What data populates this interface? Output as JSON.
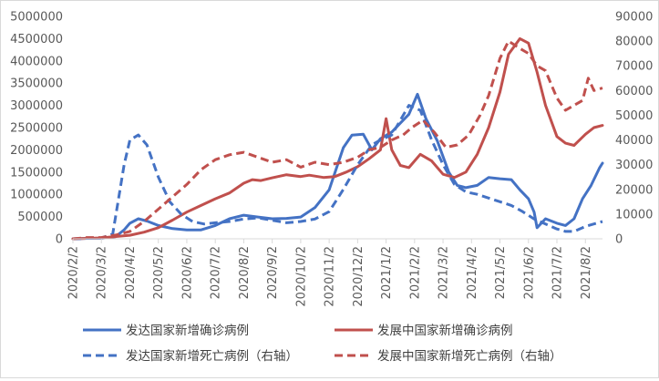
{
  "chart_data": {
    "type": "line",
    "title": "",
    "x_ticks": [
      "2020/2/2",
      "2020/3/2",
      "2020/4/2",
      "2020/5/2",
      "2020/6/2",
      "2020/7/2",
      "2020/8/2",
      "2020/9/2",
      "2020/10/2",
      "2020/11/2",
      "2020/12/2",
      "2021/1/2",
      "2021/2/2",
      "2021/3/2",
      "2021/4/2",
      "2021/5/2",
      "2021/6/2",
      "2021/7/2",
      "2021/8/2"
    ],
    "y_left": {
      "min": 0,
      "max": 5000000,
      "step": 500000,
      "ticks": [
        "0",
        "500000",
        "1000000",
        "1500000",
        "2000000",
        "2500000",
        "3000000",
        "3500000",
        "4000000",
        "4500000",
        "5000000"
      ]
    },
    "y_right": {
      "min": 0,
      "max": 90000,
      "step": 10000,
      "ticks": [
        "0",
        "10000",
        "20000",
        "30000",
        "40000",
        "50000",
        "60000",
        "70000",
        "80000",
        "90000"
      ]
    },
    "x_range_months": [
      0,
      18.6
    ],
    "grid": false,
    "legend_position": "bottom",
    "series": [
      {
        "name": "发达国家新增确诊病例",
        "axis": "left",
        "color": "#4472C4",
        "dash": false,
        "points": [
          [
            0,
            0
          ],
          [
            0.5,
            10000
          ],
          [
            1,
            10000
          ],
          [
            1.5,
            50000
          ],
          [
            1.8,
            200000
          ],
          [
            2,
            350000
          ],
          [
            2.3,
            450000
          ],
          [
            2.6,
            400000
          ],
          [
            3,
            300000
          ],
          [
            3.5,
            230000
          ],
          [
            4,
            200000
          ],
          [
            4.5,
            200000
          ],
          [
            5,
            300000
          ],
          [
            5.5,
            450000
          ],
          [
            6,
            530000
          ],
          [
            6.5,
            490000
          ],
          [
            7,
            450000
          ],
          [
            7.5,
            460000
          ],
          [
            8,
            490000
          ],
          [
            8.5,
            700000
          ],
          [
            9,
            1100000
          ],
          [
            9.5,
            2050000
          ],
          [
            9.8,
            2330000
          ],
          [
            10.2,
            2350000
          ],
          [
            10.5,
            2000000
          ],
          [
            10.8,
            2250000
          ],
          [
            11.2,
            2400000
          ],
          [
            11.5,
            2600000
          ],
          [
            11.8,
            2800000
          ],
          [
            12.1,
            3250000
          ],
          [
            12.4,
            2700000
          ],
          [
            12.8,
            2200000
          ],
          [
            13.2,
            1500000
          ],
          [
            13.5,
            1200000
          ],
          [
            13.8,
            1150000
          ],
          [
            14.2,
            1200000
          ],
          [
            14.6,
            1380000
          ],
          [
            15,
            1350000
          ],
          [
            15.4,
            1330000
          ],
          [
            15.7,
            1100000
          ],
          [
            16,
            900000
          ],
          [
            16.2,
            600000
          ],
          [
            16.3,
            250000
          ],
          [
            16.6,
            450000
          ],
          [
            17,
            350000
          ],
          [
            17.3,
            300000
          ],
          [
            17.6,
            450000
          ],
          [
            17.9,
            900000
          ],
          [
            18.2,
            1200000
          ],
          [
            18.5,
            1600000
          ],
          [
            18.6,
            1700000
          ]
        ]
      },
      {
        "name": "发展中国家新增确诊病例",
        "axis": "left",
        "color": "#C0504D",
        "dash": false,
        "points": [
          [
            0,
            0
          ],
          [
            1,
            20000
          ],
          [
            2,
            80000
          ],
          [
            2.5,
            150000
          ],
          [
            3,
            250000
          ],
          [
            3.5,
            420000
          ],
          [
            4,
            600000
          ],
          [
            4.5,
            750000
          ],
          [
            5,
            900000
          ],
          [
            5.5,
            1030000
          ],
          [
            6,
            1250000
          ],
          [
            6.3,
            1330000
          ],
          [
            6.6,
            1310000
          ],
          [
            7,
            1370000
          ],
          [
            7.5,
            1440000
          ],
          [
            8,
            1400000
          ],
          [
            8.3,
            1430000
          ],
          [
            8.8,
            1380000
          ],
          [
            9.2,
            1400000
          ],
          [
            9.6,
            1500000
          ],
          [
            10,
            1620000
          ],
          [
            10.4,
            1800000
          ],
          [
            10.8,
            2000000
          ],
          [
            11,
            2700000
          ],
          [
            11.2,
            2000000
          ],
          [
            11.5,
            1650000
          ],
          [
            11.8,
            1600000
          ],
          [
            12.2,
            1900000
          ],
          [
            12.6,
            1750000
          ],
          [
            13,
            1450000
          ],
          [
            13.4,
            1380000
          ],
          [
            13.8,
            1500000
          ],
          [
            14.2,
            1900000
          ],
          [
            14.6,
            2500000
          ],
          [
            15,
            3300000
          ],
          [
            15.3,
            4150000
          ],
          [
            15.7,
            4500000
          ],
          [
            16,
            4400000
          ],
          [
            16.3,
            3750000
          ],
          [
            16.6,
            3000000
          ],
          [
            17,
            2300000
          ],
          [
            17.3,
            2150000
          ],
          [
            17.6,
            2100000
          ],
          [
            18,
            2350000
          ],
          [
            18.3,
            2500000
          ],
          [
            18.6,
            2550000
          ]
        ]
      },
      {
        "name": "发达国家新增死亡病例（右轴）",
        "axis": "right",
        "color": "#4472C4",
        "dash": true,
        "points": [
          [
            0,
            0
          ],
          [
            0.5,
            200
          ],
          [
            1,
            300
          ],
          [
            1.4,
            2000
          ],
          [
            1.8,
            30000
          ],
          [
            2,
            40000
          ],
          [
            2.3,
            42000
          ],
          [
            2.6,
            38000
          ],
          [
            3,
            25000
          ],
          [
            3.4,
            15000
          ],
          [
            3.8,
            10000
          ],
          [
            4.2,
            7000
          ],
          [
            4.6,
            6000
          ],
          [
            5,
            6500
          ],
          [
            5.5,
            7000
          ],
          [
            6,
            8000
          ],
          [
            6.5,
            8500
          ],
          [
            7,
            7500
          ],
          [
            7.5,
            6500
          ],
          [
            8,
            7000
          ],
          [
            8.5,
            8000
          ],
          [
            9,
            11000
          ],
          [
            9.5,
            20000
          ],
          [
            10,
            30000
          ],
          [
            10.5,
            38000
          ],
          [
            10.8,
            40000
          ],
          [
            11.2,
            42000
          ],
          [
            11.5,
            48000
          ],
          [
            11.8,
            54000
          ],
          [
            12.2,
            52000
          ],
          [
            12.6,
            40000
          ],
          [
            13,
            30000
          ],
          [
            13.4,
            22000
          ],
          [
            13.8,
            19000
          ],
          [
            14.2,
            18000
          ],
          [
            14.6,
            16500
          ],
          [
            15,
            15000
          ],
          [
            15.4,
            13500
          ],
          [
            15.8,
            11000
          ],
          [
            16.2,
            8000
          ],
          [
            16.6,
            6000
          ],
          [
            17,
            4000
          ],
          [
            17.3,
            3000
          ],
          [
            17.6,
            3000
          ],
          [
            18,
            5000
          ],
          [
            18.3,
            6000
          ],
          [
            18.6,
            7000
          ]
        ]
      },
      {
        "name": "发展中国家新增死亡病例（右轴）",
        "axis": "right",
        "color": "#C0504D",
        "dash": true,
        "points": [
          [
            0,
            0
          ],
          [
            0.5,
            500
          ],
          [
            1,
            500
          ],
          [
            1.5,
            1500
          ],
          [
            2,
            3000
          ],
          [
            2.5,
            7000
          ],
          [
            3,
            12000
          ],
          [
            3.5,
            17000
          ],
          [
            4,
            22000
          ],
          [
            4.5,
            28000
          ],
          [
            5,
            32000
          ],
          [
            5.5,
            34000
          ],
          [
            6,
            35000
          ],
          [
            6.5,
            33000
          ],
          [
            7,
            31000
          ],
          [
            7.5,
            32000
          ],
          [
            8,
            29000
          ],
          [
            8.5,
            31000
          ],
          [
            9,
            30000
          ],
          [
            9.5,
            31000
          ],
          [
            10,
            33000
          ],
          [
            10.4,
            36000
          ],
          [
            10.8,
            37000
          ],
          [
            11.2,
            40000
          ],
          [
            11.6,
            42000
          ],
          [
            11.9,
            45000
          ],
          [
            12.3,
            48000
          ],
          [
            12.7,
            43000
          ],
          [
            13.1,
            37000
          ],
          [
            13.5,
            38000
          ],
          [
            13.9,
            42000
          ],
          [
            14.3,
            50000
          ],
          [
            14.6,
            58000
          ],
          [
            15,
            73000
          ],
          [
            15.3,
            80000
          ],
          [
            15.7,
            77000
          ],
          [
            16,
            75000
          ],
          [
            16.3,
            70000
          ],
          [
            16.6,
            68000
          ],
          [
            17,
            57000
          ],
          [
            17.3,
            52000
          ],
          [
            17.6,
            54000
          ],
          [
            17.9,
            56000
          ],
          [
            18.1,
            65000
          ],
          [
            18.3,
            60000
          ],
          [
            18.6,
            61000
          ]
        ]
      }
    ]
  }
}
